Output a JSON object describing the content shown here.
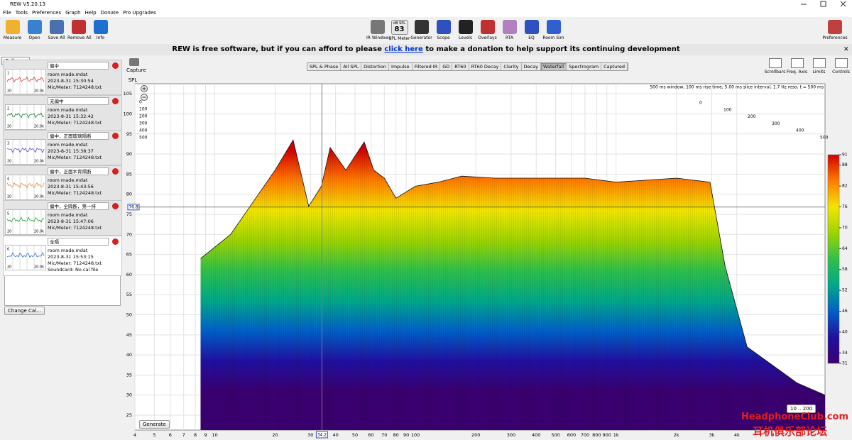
{
  "window": {
    "title": "REW V5.20.13"
  },
  "menu": [
    "File",
    "Tools",
    "Preferences",
    "Graph",
    "Help",
    "Donate",
    "Pro Upgrades"
  ],
  "toolbar": {
    "left": [
      "Measure",
      "Open",
      "Save All",
      "Remove All",
      "Info"
    ],
    "center": [
      "IR Windows",
      "SPL Meter",
      "Generator",
      "Scope",
      "Levels",
      "Overlays",
      "RTA",
      "EQ",
      "Room Sim"
    ],
    "right": [
      "Preferences"
    ],
    "spl_meter": {
      "unit": "dB SPL",
      "reading": "83"
    }
  },
  "banner": {
    "before": "REW is free software, but if you can afford to please",
    "link": "click here",
    "after": "to make a donation to help support its continuing development"
  },
  "sidebar": {
    "collapse": "Collapse",
    "change_cal": "Change Cal...",
    "thumb_axis": [
      "20",
      "20.0k"
    ],
    "measurements": [
      {
        "index": "1",
        "name": "偏中",
        "file": "room made.mdat",
        "date": "2023-8-31 15:30:54",
        "meter": "Mic/Meter: 7124248.txt",
        "color": "#d03030"
      },
      {
        "index": "2",
        "name": "无偏中",
        "file": "room made.mdat",
        "date": "2023-8-31 15:32:42",
        "meter": "Mic/Meter: 7124248.txt",
        "color": "#208040"
      },
      {
        "index": "3",
        "name": "偏中，正面玻璃隔断",
        "file": "room made.mdat",
        "date": "2023-8-31 15:38:37",
        "meter": "Mic/Meter: 7124248.txt",
        "color": "#5a50c8"
      },
      {
        "index": "4",
        "name": "偏中，正面木背隔断",
        "file": "room made.mdat",
        "date": "2023-8-31 15:43:56",
        "meter": "Mic/Meter: 7124248.txt",
        "color": "#e08020"
      },
      {
        "index": "5",
        "name": "偏中，全隔断，第一排",
        "file": "room made.mdat",
        "date": "2023-8-31 15:47:06",
        "meter": "Mic/Meter: 7124248.txt",
        "color": "#20a030"
      },
      {
        "index": "6",
        "name": "全隔",
        "file": "room made.mdat",
        "date": "2023-8-31 15:53:15",
        "meter": "Mic/Meter: 7124248.txt",
        "soundcard": "Soundcard: No cal file",
        "color": "#3070d0"
      }
    ]
  },
  "capture": "Capture",
  "tabs": [
    "SPL & Phase",
    "All SPL",
    "Distortion",
    "Impulse",
    "Filtered IR",
    "GD",
    "RT60",
    "RT60 Decay",
    "Clarity",
    "Decay",
    "Waterfall",
    "Spectrogram",
    "Captured"
  ],
  "active_tab": "Waterfall",
  "graph_controls": [
    "Scrollbars",
    "Freq. Axis",
    "Limits",
    "Controls"
  ],
  "generate": "Generate",
  "range_label": "10 .. 200",
  "watermark": [
    "HeadphoneClub.com",
    "耳机俱乐部论坛"
  ],
  "chart_data": {
    "type": "waterfall",
    "y_label": "SPL",
    "info": "500 ms window, 100 ms rise time, 5.00 ms slice interval, 1.7 Hz reso, t = 500 ms",
    "x_scale": "log",
    "grid": true,
    "x": [
      8.5,
      12,
      16,
      20,
      24.6,
      29.4,
      34,
      37.6,
      45,
      55.6,
      62,
      70,
      80,
      100,
      130,
      170,
      250,
      400,
      700,
      1000,
      2000,
      2940,
      3500,
      4500,
      8000,
      11000
    ],
    "values": [
      64,
      70,
      79,
      86,
      93.5,
      77,
      82,
      91.6,
      86,
      93,
      86,
      84,
      79,
      82,
      83,
      84.5,
      84,
      84,
      84,
      83,
      84,
      83,
      62,
      42,
      33,
      30
    ],
    "xlim": [
      4,
      11000
    ],
    "xticks": [
      4,
      5,
      6,
      7,
      8,
      9,
      10,
      20,
      30,
      40,
      50,
      60,
      70,
      80,
      90,
      100,
      200,
      300,
      400,
      500,
      600,
      700,
      800,
      900,
      {
        "value": 1000,
        "label": "1k"
      },
      {
        "value": 2000,
        "label": "2k"
      },
      {
        "value": 3000,
        "label": "3k"
      },
      {
        "value": 4000,
        "label": "4k"
      }
    ],
    "ylim": [
      21.3,
      107.5
    ],
    "yticks": [
      25,
      30,
      35,
      40,
      45,
      50,
      55,
      60,
      65,
      70,
      75,
      80,
      85,
      90,
      95,
      100,
      105
    ],
    "time_ticks": [
      0,
      100,
      200,
      300,
      400,
      500
    ],
    "cursor_x": 34.2,
    "cursor_y": 76.8,
    "colorbar": {
      "lim": [
        31,
        91
      ],
      "ticks": [
        91,
        88,
        82,
        76,
        70,
        64,
        58,
        52,
        46,
        40,
        34,
        31
      ],
      "colormap": [
        "#d40000",
        "#ff7a00",
        "#f2e600",
        "#9ed400",
        "#2fc04a",
        "#00a88a",
        "#0060c8",
        "#2010a0",
        "#3a0070"
      ]
    }
  }
}
